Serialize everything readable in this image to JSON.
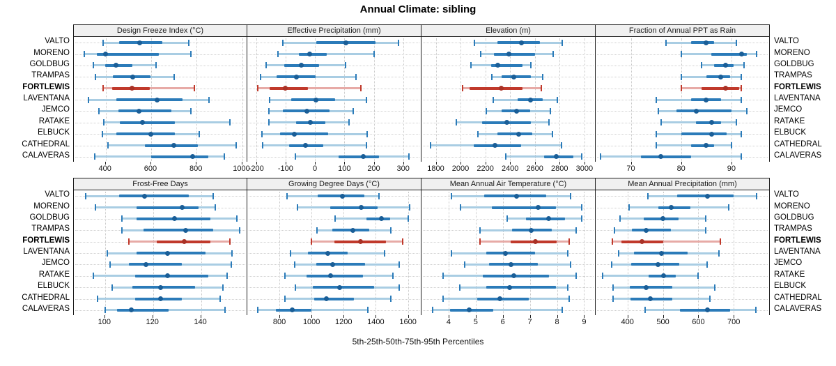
{
  "title": "Annual Climate: sibling",
  "caption": "5th-25th-50th-75th-95th Percentiles",
  "stations": [
    "VALTO",
    "MORENO",
    "GOLDBUG",
    "TRAMPAS",
    "FORTLEWIS",
    "LAVENTANA",
    "JEMCO",
    "RATAKE",
    "ELBUCK",
    "CATHEDRAL",
    "CALAVERAS"
  ],
  "highlight_station": "FORTLEWIS",
  "colors": {
    "blue_band": "#a9cde3",
    "blue_line": "#2b7bb9",
    "blue_dot": "#1a5e97",
    "red_band": "#e7aaa6",
    "red_line": "#c0392b",
    "red_dot": "#a93226",
    "grid": "#c8c8c8",
    "strip_bg": "#f0f0f0",
    "border": "#1c1c1c"
  },
  "chart_data": [
    {
      "type": "dotplot-interval",
      "title": "Design Freeze Index (°C)",
      "percentiles": [
        "5th",
        "25th",
        "50th",
        "75th",
        "95th"
      ],
      "xlim": [
        260,
        1020
      ],
      "ticks": [
        400,
        600,
        800,
        1000
      ],
      "values": [
        [
          390,
          460,
          550,
          650,
          765
        ],
        [
          305,
          360,
          400,
          635,
          775
        ],
        [
          345,
          397,
          446,
          517,
          620
        ],
        [
          355,
          432,
          520,
          597,
          700
        ],
        [
          390,
          428,
          515,
          595,
          790
        ],
        [
          325,
          446,
          625,
          737,
          853
        ],
        [
          369,
          455,
          546,
          690,
          774
        ],
        [
          392,
          463,
          563,
          705,
          945
        ],
        [
          385,
          446,
          600,
          706,
          812
        ],
        [
          410,
          573,
          699,
          807,
          975
        ],
        [
          353,
          600,
          782,
          851,
          923
        ]
      ]
    },
    {
      "type": "dotplot-interval",
      "title": "Effective Precipitation (mm)",
      "percentiles": [
        "5th",
        "25th",
        "50th",
        "75th",
        "95th"
      ],
      "xlim": [
        -230,
        360
      ],
      "ticks": [
        -200,
        -100,
        0,
        100,
        200,
        300
      ],
      "values": [
        [
          -110,
          5,
          105,
          205,
          285
        ],
        [
          -127,
          -55,
          -19,
          41,
          200
        ],
        [
          -165,
          -105,
          -47,
          15,
          105
        ],
        [
          -186,
          -131,
          -62,
          2,
          140
        ],
        [
          -194,
          -155,
          -100,
          -24,
          156
        ],
        [
          -155,
          -80,
          4,
          69,
          176
        ],
        [
          -157,
          -110,
          -28,
          49,
          130
        ],
        [
          -157,
          -65,
          -15,
          35,
          115
        ],
        [
          -180,
          -119,
          -69,
          44,
          178
        ],
        [
          -178,
          -88,
          -32,
          29,
          174
        ],
        [
          -67,
          80,
          164,
          217,
          320
        ]
      ]
    },
    {
      "type": "dotplot-interval",
      "title": "Elevation (m)",
      "percentiles": [
        "5th",
        "25th",
        "50th",
        "75th",
        "95th"
      ],
      "xlim": [
        1685,
        3085
      ],
      "ticks": [
        1800,
        2000,
        2200,
        2400,
        2600,
        2800,
        3000
      ],
      "values": [
        [
          2110,
          2300,
          2490,
          2640,
          2820
        ],
        [
          2165,
          2270,
          2390,
          2600,
          2750
        ],
        [
          2085,
          2245,
          2300,
          2500,
          2565
        ],
        [
          2250,
          2330,
          2430,
          2570,
          2665
        ],
        [
          2015,
          2070,
          2330,
          2500,
          2650
        ],
        [
          2265,
          2460,
          2565,
          2665,
          2780
        ],
        [
          2210,
          2330,
          2450,
          2565,
          2725
        ],
        [
          1965,
          2175,
          2375,
          2570,
          2715
        ],
        [
          2140,
          2300,
          2470,
          2580,
          2740
        ],
        [
          1760,
          2105,
          2280,
          2490,
          2815
        ],
        [
          2365,
          2675,
          2775,
          2910,
          2980
        ]
      ]
    },
    {
      "type": "dotplot-interval",
      "title": "Fraction of Annual PPT as Rain",
      "percentiles": [
        "5th",
        "25th",
        "50th",
        "75th",
        "95th"
      ],
      "xlim": [
        63,
        97.5
      ],
      "ticks": [
        70,
        80,
        90
      ],
      "values": [
        [
          77,
          82,
          85,
          86.5,
          91
        ],
        [
          80,
          86,
          92,
          93,
          95
        ],
        [
          84,
          86.5,
          88.8,
          90.5,
          92.5
        ],
        [
          80,
          85,
          87.8,
          89.8,
          92
        ],
        [
          80,
          84,
          88.8,
          91.5,
          92
        ],
        [
          75,
          82,
          85,
          88,
          92
        ],
        [
          75.5,
          79,
          83,
          90,
          93
        ],
        [
          76,
          83,
          86,
          88,
          91
        ],
        [
          75,
          80,
          86,
          89,
          92
        ],
        [
          75,
          82,
          85,
          86.5,
          90
        ],
        [
          64,
          72,
          76,
          82,
          92
        ]
      ]
    },
    {
      "type": "dotplot-interval",
      "title": "Frost-Free Days",
      "percentiles": [
        "5th",
        "25th",
        "50th",
        "75th",
        "95th"
      ],
      "xlim": [
        87,
        159
      ],
      "ticks": [
        100,
        120,
        140
      ],
      "values": [
        [
          92,
          106,
          116.5,
          135,
          145
        ],
        [
          96,
          113,
          132,
          139,
          146
        ],
        [
          107,
          113,
          129,
          144,
          155
        ],
        [
          107,
          116,
          133.5,
          145,
          156
        ],
        [
          110,
          121.5,
          133,
          144,
          152
        ],
        [
          101,
          113,
          126,
          142,
          153
        ],
        [
          102,
          110,
          117,
          132,
          152.5
        ],
        [
          95,
          112.5,
          126,
          143,
          151
        ],
        [
          103,
          111.5,
          123,
          137.5,
          149
        ],
        [
          97,
          112.5,
          123,
          132,
          148
        ],
        [
          100,
          105,
          111,
          126.5,
          150
        ]
      ]
    },
    {
      "type": "dotplot-interval",
      "title": "Growing Degree Days (°C)",
      "percentiles": [
        "5th",
        "25th",
        "50th",
        "75th",
        "95th"
      ],
      "xlim": [
        600,
        1680
      ],
      "ticks": [
        800,
        1000,
        1200,
        1400,
        1600
      ],
      "values": [
        [
          845,
          1040,
          1190,
          1330,
          1420
        ],
        [
          913,
          1116,
          1307,
          1410,
          1610
        ],
        [
          1145,
          1340,
          1435,
          1490,
          1600
        ],
        [
          1035,
          1130,
          1255,
          1360,
          1495
        ],
        [
          1000,
          1140,
          1305,
          1465,
          1565
        ],
        [
          870,
          977,
          1100,
          1223,
          1455
        ],
        [
          895,
          1030,
          1130,
          1333,
          1545
        ],
        [
          836,
          970,
          1120,
          1320,
          1507
        ],
        [
          900,
          1006,
          1174,
          1390,
          1545
        ],
        [
          832,
          1017,
          1093,
          1264,
          1493
        ],
        [
          667,
          778,
          880,
          1000,
          1348
        ]
      ]
    },
    {
      "type": "dotplot-interval",
      "title": "Mean Annual Air Temperature (°C)",
      "percentiles": [
        "5th",
        "25th",
        "50th",
        "75th",
        "95th"
      ],
      "xlim": [
        3.0,
        9.4
      ],
      "ticks": [
        4,
        5,
        6,
        7,
        8,
        9
      ],
      "values": [
        [
          4.1,
          5.3,
          6.5,
          7.6,
          8.5
        ],
        [
          4.45,
          5.6,
          7.3,
          7.95,
          8.9
        ],
        [
          6.15,
          6.85,
          7.7,
          8.3,
          8.9
        ],
        [
          5.15,
          6.35,
          7.05,
          7.8,
          8.7
        ],
        [
          5.15,
          6.3,
          7.2,
          8.0,
          8.45
        ],
        [
          4.1,
          5.4,
          6.1,
          7.2,
          8.4
        ],
        [
          4.6,
          5.5,
          6.3,
          7.3,
          8.5
        ],
        [
          3.8,
          5.25,
          6.4,
          7.7,
          8.7
        ],
        [
          4.4,
          5.4,
          6.25,
          7.95,
          8.4
        ],
        [
          3.8,
          5.05,
          5.9,
          6.95,
          8.45
        ],
        [
          3.4,
          4.05,
          4.75,
          5.65,
          8.2
        ]
      ]
    },
    {
      "type": "dotplot-interval",
      "title": "Mean Annual Precipitation (mm)",
      "percentiles": [
        "5th",
        "25th",
        "50th",
        "75th",
        "95th"
      ],
      "xlim": [
        310,
        800
      ],
      "ticks": [
        400,
        500,
        600,
        700
      ],
      "values": [
        [
          458,
          540,
          625,
          700,
          765
        ],
        [
          405,
          487,
          523,
          578,
          685
        ],
        [
          378,
          445,
          500,
          545,
          620
        ],
        [
          363,
          413,
          453,
          523,
          620
        ],
        [
          358,
          383,
          440,
          500,
          663
        ],
        [
          375,
          418,
          496,
          570,
          658
        ],
        [
          355,
          411,
          486,
          547,
          625
        ],
        [
          330,
          460,
          502,
          536,
          600
        ],
        [
          360,
          407,
          452,
          527,
          646
        ],
        [
          360,
          408,
          464,
          527,
          632
        ],
        [
          450,
          548,
          626,
          690,
          763
        ]
      ]
    }
  ]
}
